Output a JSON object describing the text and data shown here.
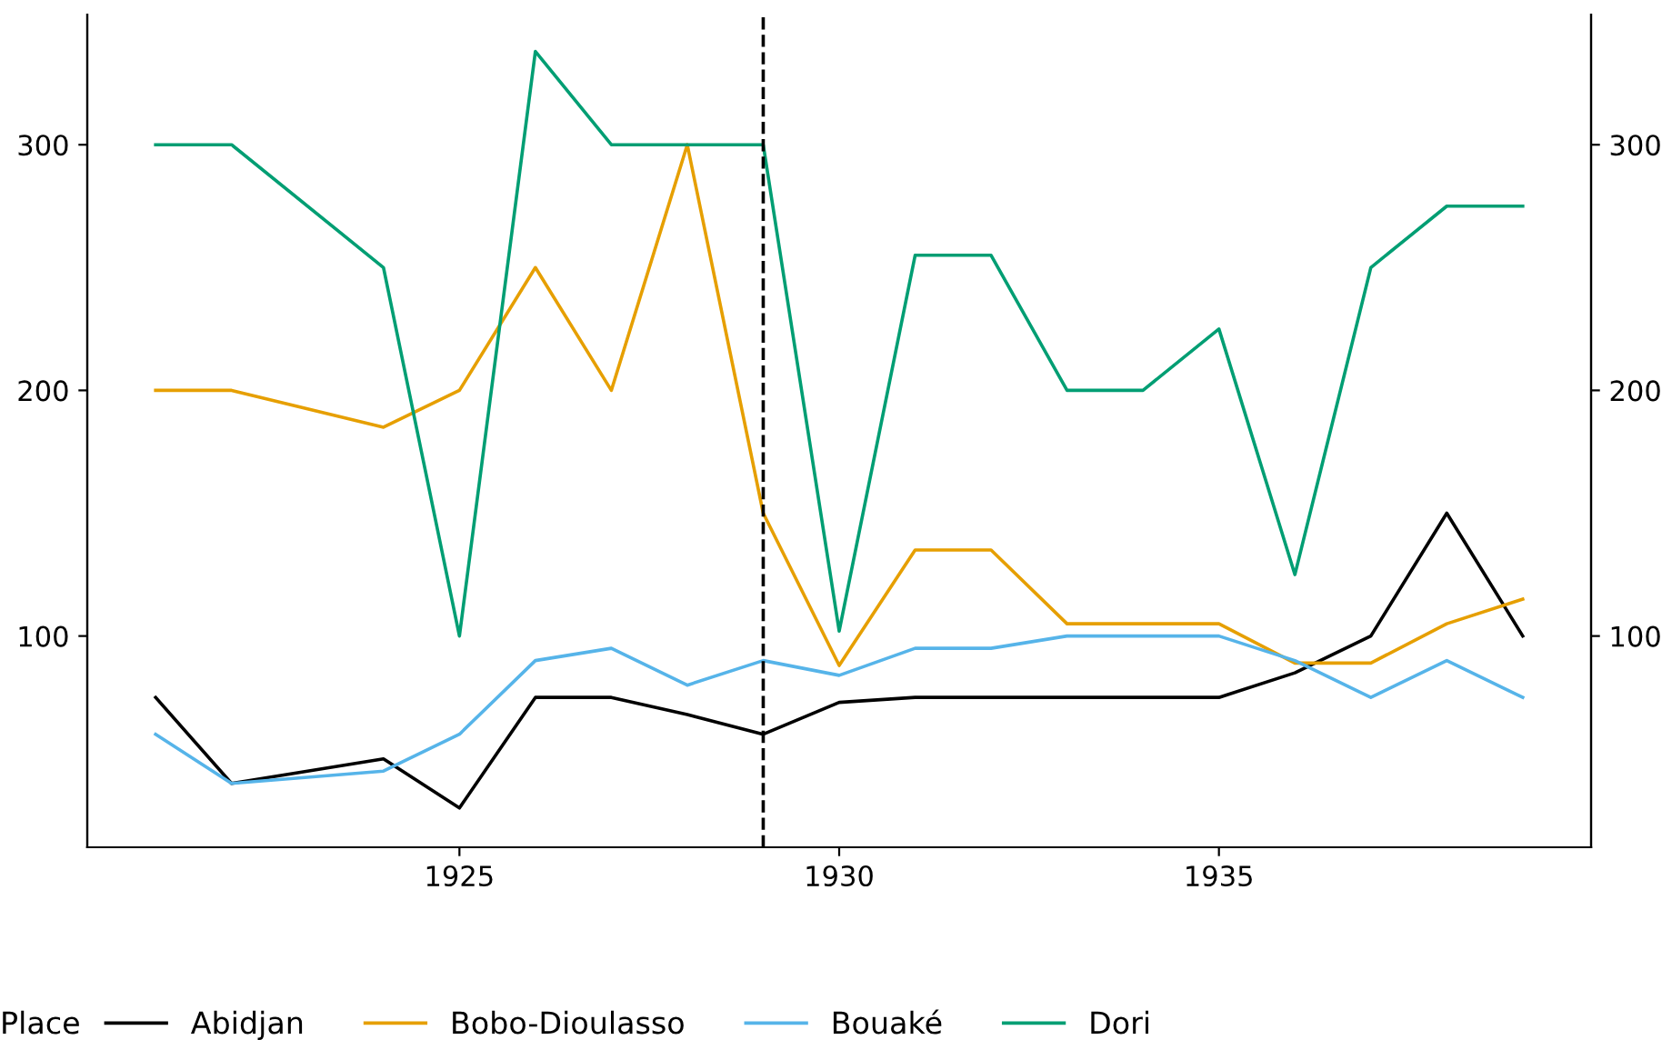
{
  "chart_data": {
    "type": "line",
    "x": [
      1921,
      1922,
      1924,
      1925,
      1926,
      1927,
      1928,
      1929,
      1930,
      1931,
      1932,
      1933,
      1934,
      1935,
      1936,
      1937,
      1938,
      1939
    ],
    "series": [
      {
        "name": "Abidjan",
        "color": "#000000",
        "values": [
          75,
          40,
          50,
          30,
          75,
          75,
          68,
          60,
          73,
          75,
          75,
          75,
          75,
          75,
          85,
          100,
          150,
          100
        ]
      },
      {
        "name": "Bobo-Dioulasso",
        "color": "#e69f00",
        "values": [
          200,
          200,
          185,
          200,
          250,
          200,
          300,
          150,
          88,
          135,
          135,
          105,
          105,
          105,
          89,
          89,
          105,
          115
        ]
      },
      {
        "name": "Bouaké",
        "color": "#56b4e9",
        "values": [
          60,
          40,
          45,
          60,
          90,
          95,
          80,
          90,
          84,
          95,
          95,
          100,
          100,
          100,
          90,
          75,
          90,
          75
        ]
      },
      {
        "name": "Dori",
        "color": "#009e73",
        "values": [
          300,
          300,
          250,
          100,
          338,
          300,
          300,
          300,
          102,
          255,
          255,
          200,
          200,
          225,
          125,
          250,
          275,
          275
        ]
      }
    ],
    "legend_title": "Place",
    "legend": "bottom",
    "xlim": [
      1920.1,
      1939.9
    ],
    "xticks": [
      1925,
      1930,
      1935
    ],
    "ylim": [
      14,
      353
    ],
    "yticks": [
      100,
      200,
      300
    ],
    "y2lim": [
      14,
      353
    ],
    "y2ticks": [
      100,
      200,
      300
    ],
    "ref_lines": [
      {
        "axis": "x",
        "value": 1929,
        "color": "#000000",
        "line_style": "dashed"
      }
    ],
    "grid": false,
    "line_style": "solid",
    "marker": "none"
  }
}
